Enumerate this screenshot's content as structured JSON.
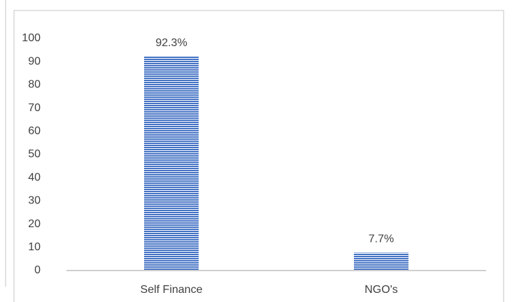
{
  "chart_data": {
    "type": "bar",
    "categories": [
      "Self Finance",
      "NGO's"
    ],
    "values": [
      92.3,
      7.7
    ],
    "value_labels": [
      "92.3%",
      "7.7%"
    ],
    "color": "#4472c4",
    "ylim": [
      0,
      100
    ],
    "yticks": [
      0,
      10,
      20,
      30,
      40,
      50,
      60,
      70,
      80,
      90,
      100
    ],
    "grid": false
  }
}
